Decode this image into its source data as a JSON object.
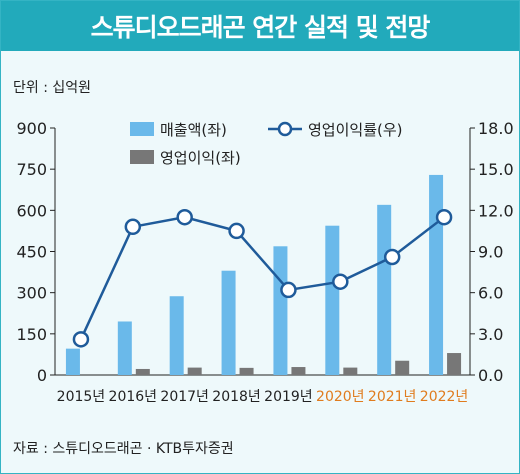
{
  "title": "스튜디오드래곤 연간 실적 및 전망",
  "unit_label": "단위 : 십억원",
  "source": "자료 : 스튜디오드래곤 · KTB투자증권",
  "colors": {
    "header": "#22aabb",
    "revenue": "#6ab9ea",
    "op_income": "#777777",
    "margin_line": "#1f5b9a",
    "forecast_label": "#e07c1e"
  },
  "chart_data": {
    "type": "bar",
    "categories": [
      "2015년",
      "2016년",
      "2017년",
      "2018년",
      "2019년",
      "2020년",
      "2021년",
      "2022년"
    ],
    "forecast_categories": [
      "2020년",
      "2021년",
      "2022년"
    ],
    "series": [
      {
        "name": "매출액(좌)",
        "type": "bar",
        "axis": "left",
        "values": [
          96,
          195,
          287,
          380,
          469,
          544,
          620,
          729
        ]
      },
      {
        "name": "영업이익(좌)",
        "type": "bar",
        "axis": "left",
        "values": [
          0,
          22,
          27,
          26,
          29,
          27,
          52,
          80
        ]
      },
      {
        "name": "영업이익률(우)",
        "type": "line",
        "axis": "right",
        "values": [
          2.6,
          10.8,
          11.5,
          10.5,
          6.2,
          6.8,
          8.6,
          11.5
        ]
      }
    ],
    "y_left": {
      "min": 0,
      "max": 900,
      "ticks": [
        "0",
        "150",
        "300",
        "450",
        "600",
        "750",
        "900"
      ]
    },
    "y_right": {
      "min": 0,
      "max": 18,
      "ticks": [
        "0.0",
        "3.0",
        "6.0",
        "9.0",
        "12.0",
        "15.0",
        "18.0"
      ]
    },
    "legend": [
      "매출액(좌)",
      "영업이익률(우)",
      "영업이익(좌)"
    ],
    "legend_position": "top"
  }
}
